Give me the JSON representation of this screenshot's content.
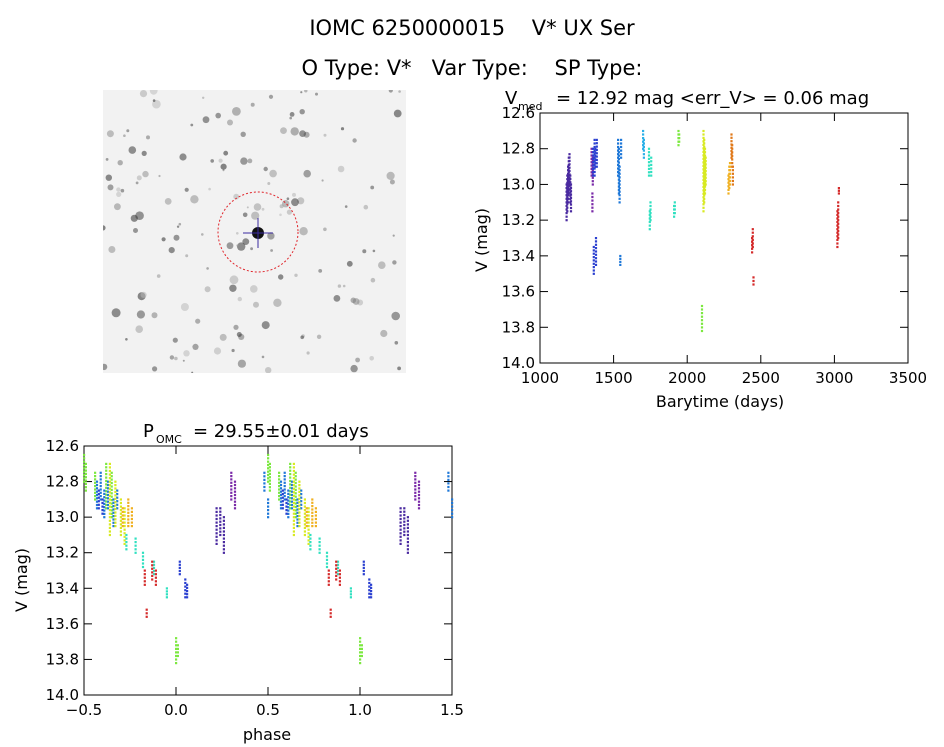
{
  "header": {
    "title": "IOMC 6250000015    V* UX Ser",
    "subtitle": "O Type: V*   Var Type:    SP Type:"
  },
  "colors": {
    "background": "#ffffff",
    "axes": "#000000",
    "aperture": "#e0242a",
    "palette": [
      "#7a2aa8",
      "#4a2aa0",
      "#2a3fd0",
      "#1f78d8",
      "#2ab0e8",
      "#30e0c0",
      "#7ce840",
      "#d8ea22",
      "#f0b020",
      "#e07818",
      "#d42a2a"
    ]
  },
  "chart_data": [
    {
      "type": "image",
      "description_label": "sky-thumbnail"
    },
    {
      "type": "scatter",
      "title_text": "= 12.92 mag <err_V> = 0.06 mag",
      "title_prefix": "V",
      "title_sub": "med",
      "xlabel": "Barytime (days)",
      "ylabel": "V (mag)",
      "xlim": [
        1000,
        3500
      ],
      "ylim": [
        14.0,
        12.6
      ],
      "y_inverted": true,
      "xticks": [
        1000,
        1500,
        2000,
        2500,
        3000,
        3500
      ],
      "yticks": [
        12.6,
        12.8,
        13.0,
        13.2,
        13.4,
        13.6,
        13.8,
        14.0
      ],
      "ytick_labels": [
        "12.6",
        "12.8",
        "13.0",
        "13.2",
        "13.4",
        "13.6",
        "13.8",
        "14.0"
      ],
      "groups": [
        {
          "color": "#4a2aa0",
          "x": [
            1180,
            1185,
            1190,
            1195,
            1200,
            1205,
            1210
          ],
          "y": [
            [
              13.0,
              13.2
            ],
            [
              12.95,
              13.15
            ],
            [
              12.9,
              13.1
            ],
            [
              12.85,
              13.05
            ],
            [
              12.83,
              13.0
            ],
            [
              12.95,
              13.1
            ],
            [
              13.0,
              13.15
            ]
          ]
        },
        {
          "color": "#7a2aa8",
          "x": [
            1350,
            1355,
            1358
          ],
          "y": [
            [
              12.8,
              12.95
            ],
            [
              13.05,
              13.15
            ],
            [
              12.85,
              13.0
            ]
          ]
        },
        {
          "color": "#2a3fd0",
          "x": [
            1360,
            1365,
            1370,
            1375,
            1380,
            1385
          ],
          "y": [
            [
              12.8,
              12.95
            ],
            [
              13.35,
              13.5
            ],
            [
              12.75,
              12.95
            ],
            [
              12.8,
              12.9
            ],
            [
              13.3,
              13.45
            ],
            [
              12.75,
              12.9
            ]
          ]
        },
        {
          "color": "#1f78d8",
          "x": [
            1530,
            1535,
            1540,
            1545,
            1550
          ],
          "y": [
            [
              12.75,
              12.95
            ],
            [
              12.8,
              13.05
            ],
            [
              12.9,
              13.1
            ],
            [
              13.4,
              13.45
            ],
            [
              12.75,
              12.85
            ]
          ]
        },
        {
          "color": "#2ab0e8",
          "x": [
            1700,
            1705
          ],
          "y": [
            [
              12.7,
              12.8
            ],
            [
              12.75,
              12.85
            ]
          ]
        },
        {
          "color": "#30e0c0",
          "x": [
            1740,
            1745,
            1750,
            1755
          ],
          "y": [
            [
              12.8,
              12.95
            ],
            [
              13.15,
              13.25
            ],
            [
              13.1,
              13.2
            ],
            [
              12.85,
              12.95
            ]
          ]
        },
        {
          "color": "#30e0c0",
          "x": [
            1910,
            1915
          ],
          "y": [
            [
              13.12,
              13.18
            ],
            [
              13.1,
              13.16
            ]
          ]
        },
        {
          "color": "#7ce840",
          "x": [
            1940,
            1945
          ],
          "y": [
            [
              12.7,
              12.78
            ],
            [
              12.72,
              12.76
            ]
          ]
        },
        {
          "color": "#7ce840",
          "x": [
            2100
          ],
          "y": [
            [
              13.68,
              13.82
            ]
          ]
        },
        {
          "color": "#d8ea22",
          "x": [
            2110,
            2115,
            2120,
            2125
          ],
          "y": [
            [
              12.7,
              13.15
            ],
            [
              12.75,
              13.1
            ],
            [
              12.8,
              13.05
            ],
            [
              12.85,
              13.0
            ]
          ]
        },
        {
          "color": "#f0b020",
          "x": [
            2280,
            2285,
            2290
          ],
          "y": [
            [
              12.95,
              13.05
            ],
            [
              12.9,
              13.02
            ],
            [
              12.88,
              13.0
            ]
          ]
        },
        {
          "color": "#e07818",
          "x": [
            2300,
            2305,
            2310
          ],
          "y": [
            [
              12.72,
              12.85
            ],
            [
              12.78,
              12.9
            ],
            [
              12.9,
              13.0
            ]
          ]
        },
        {
          "color": "#d42a2a",
          "x": [
            2440,
            2445,
            2450
          ],
          "y": [
            [
              13.3,
              13.38
            ],
            [
              13.25,
              13.35
            ],
            [
              13.52,
              13.56
            ]
          ]
        },
        {
          "color": "#d42a2a",
          "x": [
            3020,
            3025,
            3030
          ],
          "y": [
            [
              13.15,
              13.35
            ],
            [
              13.1,
              13.3
            ],
            [
              13.02,
              13.05
            ]
          ]
        }
      ]
    },
    {
      "type": "scatter",
      "title_prefix": "P",
      "title_sub": "OMC",
      "title_text": "= 29.55±0.01 days",
      "xlabel": "phase",
      "ylabel": "V (mag)",
      "xlim": [
        -0.5,
        1.5
      ],
      "ylim": [
        14.0,
        12.6
      ],
      "y_inverted": true,
      "xticks": [
        -0.5,
        0.0,
        0.5,
        1.0,
        1.5
      ],
      "xtick_labels": [
        "−0.5",
        "0.0",
        "0.5",
        "1.0",
        "1.5"
      ],
      "yticks": [
        12.6,
        12.8,
        13.0,
        13.2,
        13.4,
        13.6,
        13.8,
        14.0
      ],
      "ytick_labels": [
        "12.6",
        "12.8",
        "13.0",
        "13.2",
        "13.4",
        "13.6",
        "13.8",
        "14.0"
      ],
      "groups": [
        {
          "color": "#7ce840",
          "x": [
            -0.5,
            -0.49,
            -0.44,
            -0.38,
            -0.35,
            0.0,
            0.01
          ],
          "y": [
            [
              12.65,
              12.8
            ],
            [
              12.7,
              12.85
            ],
            [
              12.75,
              12.9
            ],
            [
              12.7,
              12.95
            ],
            [
              12.75,
              13.0
            ],
            [
              13.68,
              13.82
            ],
            [
              13.72,
              13.78
            ]
          ]
        },
        {
          "color": "#1f78d8",
          "x": [
            -0.43,
            -0.41,
            -0.39,
            -0.37,
            -0.34,
            -0.32
          ],
          "y": [
            [
              12.8,
              12.95
            ],
            [
              12.75,
              12.9
            ],
            [
              12.85,
              13.0
            ],
            [
              12.8,
              12.95
            ],
            [
              12.9,
              13.05
            ],
            [
              12.85,
              12.95
            ]
          ]
        },
        {
          "color": "#2a3fd0",
          "x": [
            -0.42,
            -0.4,
            0.02,
            0.05,
            0.06
          ],
          "y": [
            [
              12.85,
              12.95
            ],
            [
              12.9,
              12.98
            ],
            [
              13.25,
              13.32
            ],
            [
              13.35,
              13.45
            ],
            [
              13.38,
              13.45
            ]
          ]
        },
        {
          "color": "#d8ea22",
          "x": [
            -0.36,
            -0.33,
            -0.3,
            -0.28
          ],
          "y": [
            [
              12.7,
              13.1
            ],
            [
              12.8,
              13.05
            ],
            [
              12.9,
              13.1
            ],
            [
              12.95,
              13.15
            ]
          ]
        },
        {
          "color": "#30e0c0",
          "x": [
            -0.27,
            -0.22,
            -0.18,
            -0.12,
            -0.05
          ],
          "y": [
            [
              13.1,
              13.18
            ],
            [
              13.12,
              13.2
            ],
            [
              13.2,
              13.28
            ],
            [
              13.25,
              13.32
            ],
            [
              13.4,
              13.45
            ]
          ]
        },
        {
          "color": "#f0b020",
          "x": [
            -0.29,
            -0.26,
            -0.24
          ],
          "y": [
            [
              12.95,
              13.05
            ],
            [
              12.9,
              13.05
            ],
            [
              12.95,
              13.05
            ]
          ]
        },
        {
          "color": "#d42a2a",
          "x": [
            -0.17,
            -0.16,
            -0.13,
            -0.11
          ],
          "y": [
            [
              13.3,
              13.38
            ],
            [
              13.52,
              13.56
            ],
            [
              13.25,
              13.35
            ],
            [
              13.3,
              13.38
            ]
          ]
        },
        {
          "color": "#4a2aa0",
          "x": [
            0.22,
            0.24,
            0.26
          ],
          "y": [
            [
              12.95,
              13.15
            ],
            [
              12.95,
              13.1
            ],
            [
              13.0,
              13.2
            ]
          ]
        },
        {
          "color": "#7a2aa8",
          "x": [
            0.3,
            0.32
          ],
          "y": [
            [
              12.75,
              12.9
            ],
            [
              12.8,
              12.95
            ]
          ]
        },
        {
          "color": "#1f78d8",
          "x": [
            0.48,
            0.5
          ],
          "y": [
            [
              12.75,
              12.85
            ],
            [
              12.9,
              13.0
            ]
          ]
        },
        {
          "color": "#7ce840",
          "x": [
            0.5,
            0.51,
            0.56,
            0.62,
            0.65,
            1.0,
            1.01
          ],
          "y": [
            [
              12.65,
              12.8
            ],
            [
              12.7,
              12.85
            ],
            [
              12.75,
              12.9
            ],
            [
              12.7,
              12.95
            ],
            [
              12.75,
              13.0
            ],
            [
              13.68,
              13.82
            ],
            [
              13.72,
              13.78
            ]
          ]
        },
        {
          "color": "#1f78d8",
          "x": [
            0.57,
            0.59,
            0.61,
            0.63,
            0.66,
            0.68
          ],
          "y": [
            [
              12.8,
              12.95
            ],
            [
              12.75,
              12.9
            ],
            [
              12.85,
              13.0
            ],
            [
              12.8,
              12.95
            ],
            [
              12.9,
              13.05
            ],
            [
              12.85,
              12.95
            ]
          ]
        },
        {
          "color": "#2a3fd0",
          "x": [
            0.58,
            0.6,
            1.02,
            1.05,
            1.06
          ],
          "y": [
            [
              12.85,
              12.95
            ],
            [
              12.9,
              12.98
            ],
            [
              13.25,
              13.32
            ],
            [
              13.35,
              13.45
            ],
            [
              13.38,
              13.45
            ]
          ]
        },
        {
          "color": "#d8ea22",
          "x": [
            0.64,
            0.67,
            0.7,
            0.72
          ],
          "y": [
            [
              12.7,
              13.1
            ],
            [
              12.8,
              13.05
            ],
            [
              12.9,
              13.1
            ],
            [
              12.95,
              13.15
            ]
          ]
        },
        {
          "color": "#30e0c0",
          "x": [
            0.73,
            0.78,
            0.82,
            0.88,
            0.95
          ],
          "y": [
            [
              13.1,
              13.18
            ],
            [
              13.12,
              13.2
            ],
            [
              13.2,
              13.28
            ],
            [
              13.25,
              13.32
            ],
            [
              13.4,
              13.45
            ]
          ]
        },
        {
          "color": "#f0b020",
          "x": [
            0.71,
            0.74,
            0.76
          ],
          "y": [
            [
              12.95,
              13.05
            ],
            [
              12.9,
              13.05
            ],
            [
              12.95,
              13.05
            ]
          ]
        },
        {
          "color": "#d42a2a",
          "x": [
            0.83,
            0.84,
            0.87,
            0.89
          ],
          "y": [
            [
              13.3,
              13.38
            ],
            [
              13.52,
              13.56
            ],
            [
              13.25,
              13.35
            ],
            [
              13.3,
              13.38
            ]
          ]
        },
        {
          "color": "#4a2aa0",
          "x": [
            1.22,
            1.24,
            1.26
          ],
          "y": [
            [
              12.95,
              13.15
            ],
            [
              12.95,
              13.1
            ],
            [
              13.0,
              13.2
            ]
          ]
        },
        {
          "color": "#7a2aa8",
          "x": [
            1.3,
            1.32
          ],
          "y": [
            [
              12.75,
              12.9
            ],
            [
              12.8,
              12.95
            ]
          ]
        },
        {
          "color": "#1f78d8",
          "x": [
            1.48,
            1.5
          ],
          "y": [
            [
              12.75,
              12.85
            ],
            [
              12.9,
              13.0
            ]
          ]
        }
      ]
    }
  ]
}
